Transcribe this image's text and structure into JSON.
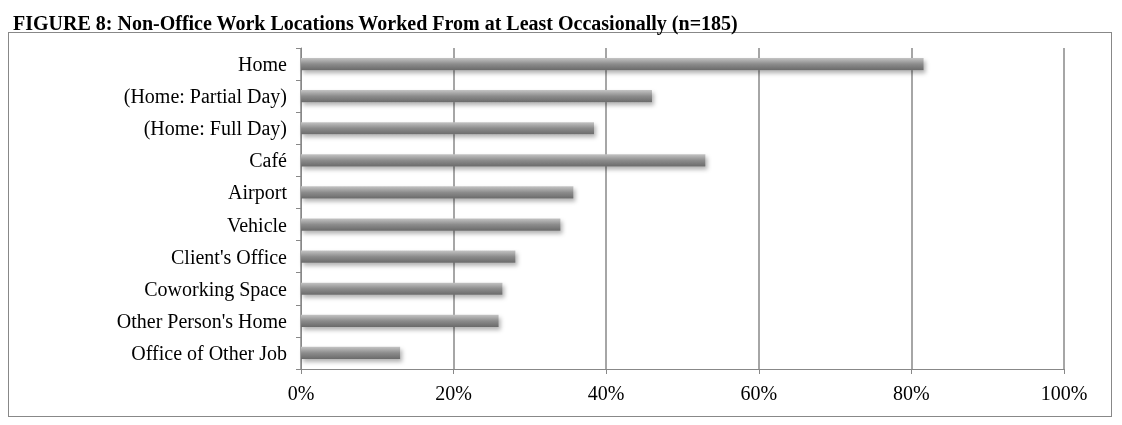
{
  "chart_data": {
    "type": "bar",
    "orientation": "horizontal",
    "title": "FIGURE 8: Non-Office Work Locations Worked From at Least Occasionally (n=185)",
    "categories": [
      "Home",
      "(Home: Partial Day)",
      "(Home: Full Day)",
      "Café",
      "Airport",
      "Vehicle",
      "Client's Office",
      "Coworking Space",
      "Other Person's Home",
      "Office of Other Job"
    ],
    "values": [
      81.6,
      46.0,
      38.4,
      53.0,
      35.7,
      34.0,
      28.1,
      26.4,
      25.9,
      13.0
    ],
    "color": "#8c8c8c",
    "xlim": [
      0,
      100
    ],
    "xticks": [
      {
        "value": 0,
        "label": "0%"
      },
      {
        "value": 20,
        "label": "20%"
      },
      {
        "value": 40,
        "label": "40%"
      },
      {
        "value": 60,
        "label": "60%"
      },
      {
        "value": 80,
        "label": "80%"
      },
      {
        "value": 100,
        "label": "100%"
      }
    ],
    "grid": "x"
  }
}
